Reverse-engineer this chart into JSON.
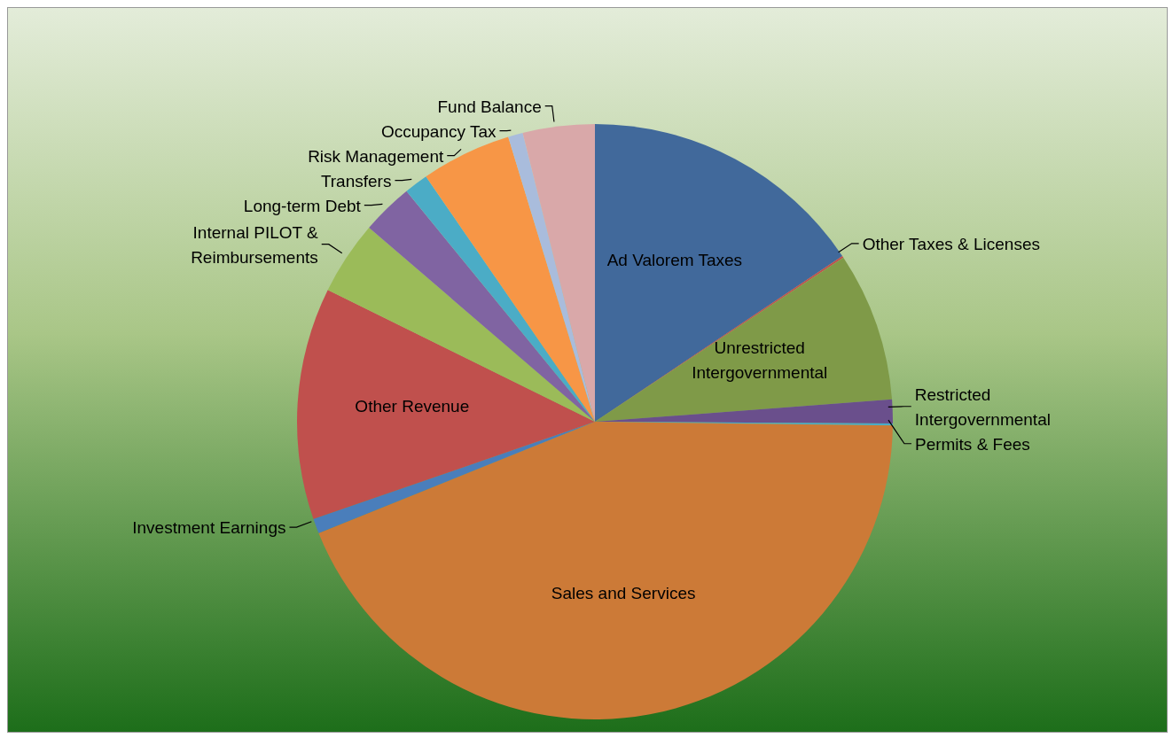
{
  "chart_data": {
    "type": "pie",
    "categories": [
      "Ad Valorem Taxes",
      "Other Taxes & Licenses",
      "Unrestricted Intergovernmental",
      "Restricted Intergovernmental",
      "Permits & Fees",
      "Sales and Services",
      "Investment Earnings",
      "Other Revenue",
      "Internal PILOT & Reimbursements",
      "Long-term Debt",
      "Transfers",
      "Risk Management",
      "Occupancy Tax",
      "Fund Balance"
    ],
    "values": [
      15.6,
      0.1,
      8.1,
      1.3,
      0.1,
      43.7,
      0.8,
      12.6,
      4.0,
      2.8,
      1.3,
      4.9,
      0.8,
      3.9
    ],
    "colors": [
      "#41699b",
      "#c0504d",
      "#7f9a48",
      "#6a4f8c",
      "#4bacc6",
      "#cc7a37",
      "#4a7ebb",
      "#c0504d",
      "#9bbb59",
      "#8064a2",
      "#4bacc6",
      "#f79646",
      "#a9bcdc",
      "#d9a8a9"
    ],
    "legend": false
  }
}
